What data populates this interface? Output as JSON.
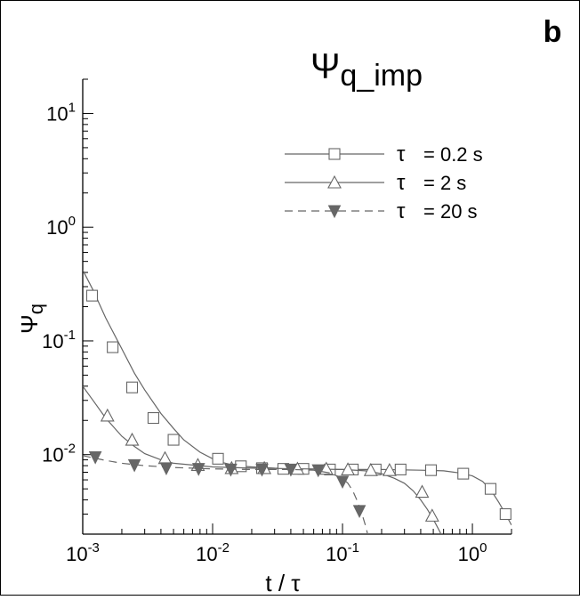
{
  "panel_label": "b",
  "chart_data": {
    "type": "line",
    "title": "Ψ",
    "title_sub": "q_imp",
    "xlabel": "t / τ",
    "ylabel": "Ψ",
    "ylabel_sub": "q",
    "x_scale": "log",
    "y_scale": "log",
    "xlim": [
      0.001,
      2
    ],
    "ylim": [
      0.002,
      20
    ],
    "grid": false,
    "legend_position": "top-right",
    "x_ticks": [
      {
        "value": 0.001,
        "base": "10",
        "exp": "-3"
      },
      {
        "value": 0.01,
        "base": "10",
        "exp": "-2"
      },
      {
        "value": 0.1,
        "base": "10",
        "exp": "-1"
      },
      {
        "value": 1,
        "base": "10",
        "exp": "0"
      }
    ],
    "y_ticks": [
      {
        "value": 0.01,
        "base": "10",
        "exp": "-2"
      },
      {
        "value": 0.1,
        "base": "10",
        "exp": "-1"
      },
      {
        "value": 1,
        "base": "10",
        "exp": "0"
      },
      {
        "value": 10,
        "base": "10",
        "exp": "1"
      }
    ],
    "series": [
      {
        "name": "τ  = 0.2 s",
        "legend_symbol": "τ",
        "legend_text": "= 0.2 s",
        "marker": "square",
        "line_style": "solid",
        "color": "#666666",
        "curve": [
          [
            0.001,
            0.42
          ],
          [
            0.0012,
            0.28
          ],
          [
            0.0015,
            0.16
          ],
          [
            0.002,
            0.085
          ],
          [
            0.0025,
            0.052
          ],
          [
            0.003,
            0.037
          ],
          [
            0.004,
            0.023
          ],
          [
            0.005,
            0.017
          ],
          [
            0.006,
            0.0135
          ],
          [
            0.008,
            0.0105
          ],
          [
            0.01,
            0.0092
          ],
          [
            0.012,
            0.0085
          ],
          [
            0.015,
            0.008
          ],
          [
            0.02,
            0.0078
          ],
          [
            0.03,
            0.0076
          ],
          [
            0.05,
            0.0075
          ],
          [
            0.1,
            0.0074
          ],
          [
            0.2,
            0.0074
          ],
          [
            0.4,
            0.0073
          ],
          [
            0.6,
            0.0072
          ],
          [
            0.8,
            0.0069
          ],
          [
            1.0,
            0.0065
          ],
          [
            1.2,
            0.0058
          ],
          [
            1.4,
            0.0048
          ],
          [
            1.6,
            0.0038
          ],
          [
            1.8,
            0.003
          ],
          [
            2.0,
            0.0024
          ]
        ],
        "markers": [
          [
            0.00118,
            0.25
          ],
          [
            0.0017,
            0.088
          ],
          [
            0.0024,
            0.039
          ],
          [
            0.0035,
            0.021
          ],
          [
            0.005,
            0.0135
          ],
          [
            0.011,
            0.0092
          ],
          [
            0.0165,
            0.0079
          ],
          [
            0.024,
            0.0076
          ],
          [
            0.035,
            0.0075
          ],
          [
            0.05,
            0.0075
          ],
          [
            0.08,
            0.0074
          ],
          [
            0.12,
            0.0074
          ],
          [
            0.18,
            0.0074
          ],
          [
            0.28,
            0.0074
          ],
          [
            0.48,
            0.0073
          ],
          [
            0.85,
            0.0068
          ],
          [
            1.38,
            0.005
          ],
          [
            1.8,
            0.003
          ]
        ]
      },
      {
        "name": "τ  = 2 s",
        "legend_symbol": "τ",
        "legend_text": "= 2 s",
        "marker": "triangle",
        "line_style": "solid",
        "color": "#666666",
        "curve": [
          [
            0.001,
            0.04
          ],
          [
            0.0012,
            0.03
          ],
          [
            0.0015,
            0.021
          ],
          [
            0.002,
            0.0145
          ],
          [
            0.0025,
            0.0118
          ],
          [
            0.003,
            0.0102
          ],
          [
            0.004,
            0.009
          ],
          [
            0.005,
            0.0084
          ],
          [
            0.007,
            0.0081
          ],
          [
            0.01,
            0.0078
          ],
          [
            0.02,
            0.0076
          ],
          [
            0.05,
            0.0075
          ],
          [
            0.1,
            0.0074
          ],
          [
            0.15,
            0.0072
          ],
          [
            0.2,
            0.0068
          ],
          [
            0.25,
            0.0062
          ],
          [
            0.3,
            0.0056
          ],
          [
            0.35,
            0.0048
          ],
          [
            0.4,
            0.004
          ],
          [
            0.45,
            0.0033
          ],
          [
            0.5,
            0.0027
          ],
          [
            0.55,
            0.0022
          ],
          [
            0.6,
            0.0018
          ]
        ],
        "markers": [
          [
            0.00155,
            0.022
          ],
          [
            0.0024,
            0.0135
          ],
          [
            0.0043,
            0.0093
          ],
          [
            0.0077,
            0.0081
          ],
          [
            0.014,
            0.0076
          ],
          [
            0.025,
            0.0076
          ],
          [
            0.045,
            0.0075
          ],
          [
            0.075,
            0.0075
          ],
          [
            0.11,
            0.0074
          ],
          [
            0.165,
            0.0073
          ],
          [
            0.23,
            0.0073
          ],
          [
            0.41,
            0.0047
          ],
          [
            0.49,
            0.0029
          ]
        ]
      },
      {
        "name": "τ  = 20 s",
        "legend_symbol": "τ",
        "legend_text": "= 20 s",
        "marker": "filled-triangle-down",
        "line_style": "dashed",
        "color": "#666666",
        "curve": [
          [
            0.001,
            0.0098
          ],
          [
            0.0015,
            0.0089
          ],
          [
            0.002,
            0.0084
          ],
          [
            0.003,
            0.008
          ],
          [
            0.005,
            0.0077
          ],
          [
            0.01,
            0.0075
          ],
          [
            0.02,
            0.0074
          ],
          [
            0.04,
            0.0074
          ],
          [
            0.06,
            0.0073
          ],
          [
            0.08,
            0.0069
          ],
          [
            0.1,
            0.0062
          ],
          [
            0.11,
            0.0056
          ],
          [
            0.12,
            0.0048
          ],
          [
            0.13,
            0.0039
          ],
          [
            0.14,
            0.0031
          ],
          [
            0.15,
            0.0024
          ],
          [
            0.158,
            0.0019
          ]
        ],
        "markers": [
          [
            0.00125,
            0.0095
          ],
          [
            0.0025,
            0.0081
          ],
          [
            0.0044,
            0.0076
          ],
          [
            0.0078,
            0.0075
          ],
          [
            0.0138,
            0.0074
          ],
          [
            0.024,
            0.0074
          ],
          [
            0.04,
            0.0074
          ],
          [
            0.065,
            0.0073
          ],
          [
            0.1,
            0.0058
          ],
          [
            0.135,
            0.0032
          ]
        ]
      }
    ]
  }
}
